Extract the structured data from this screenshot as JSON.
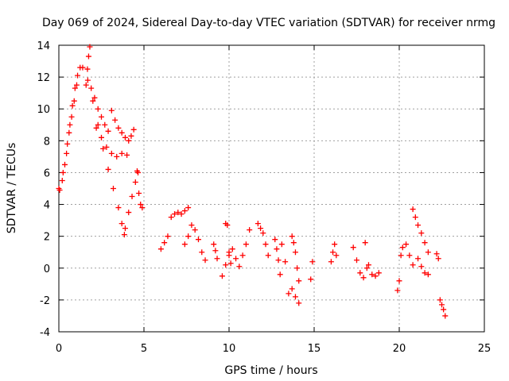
{
  "chart_data": {
    "type": "scatter",
    "title": "Day 069 of 2024, Sidereal Day-to-day VTEC variation (SDTVAR) for receiver nrmg",
    "xlabel": "GPS time / hours",
    "ylabel": "SDTVAR / TECUs",
    "xlim": [
      0,
      25
    ],
    "ylim": [
      -4,
      14
    ],
    "xticks": [
      0,
      5,
      10,
      15,
      20,
      25
    ],
    "yticks": [
      -4,
      -2,
      0,
      2,
      4,
      6,
      8,
      10,
      12,
      14
    ],
    "grid": true,
    "marker": "+",
    "color": "#ff0000",
    "series": [
      {
        "name": "SDTVAR",
        "segments": [
          {
            "x": [
              0.0,
              0.2,
              0.35,
              0.5,
              0.65,
              0.8,
              0.95,
              1.1,
              1.25,
              1.4
            ],
            "y": [
              5.0,
              5.5,
              6.5,
              7.8,
              9.0,
              10.2,
              11.3,
              12.1,
              12.6,
              12.6
            ]
          },
          {
            "x": [
              0.05,
              0.25,
              0.45,
              0.6,
              0.75,
              0.9,
              1.05
            ],
            "y": [
              4.9,
              6.0,
              7.2,
              8.5,
              9.5,
              10.5,
              11.5
            ]
          },
          {
            "x": [
              1.6,
              1.68,
              1.75,
              1.82
            ],
            "y": [
              11.5,
              12.5,
              13.3,
              13.9
            ]
          },
          {
            "x": [
              1.7,
              1.9,
              2.1,
              2.3,
              2.5,
              2.7,
              2.9
            ],
            "y": [
              11.8,
              11.3,
              10.7,
              10.0,
              9.5,
              9.0,
              8.6
            ]
          },
          {
            "x": [
              2.0,
              2.3,
              2.6,
              2.9,
              3.2,
              3.5,
              3.7,
              3.85
            ],
            "y": [
              10.5,
              9.0,
              7.5,
              6.2,
              5.0,
              3.8,
              2.8,
              2.1
            ]
          },
          {
            "x": [
              2.2,
              2.5,
              2.8,
              3.1,
              3.4,
              3.7,
              4.0
            ],
            "y": [
              8.8,
              8.2,
              7.6,
              7.2,
              7.0,
              7.2,
              7.1
            ]
          },
          {
            "x": [
              3.1,
              3.3,
              3.5,
              3.7,
              3.9,
              4.1,
              4.25,
              4.4
            ],
            "y": [
              9.9,
              9.3,
              8.8,
              8.5,
              8.2,
              8.0,
              8.3,
              8.7
            ]
          },
          {
            "x": [
              3.9,
              4.1,
              4.3,
              4.5,
              4.65
            ],
            "y": [
              2.5,
              3.5,
              4.5,
              5.4,
              6.0
            ]
          },
          {
            "x": [
              4.6,
              4.7,
              4.8,
              4.9
            ],
            "y": [
              6.1,
              4.7,
              4.0,
              3.8
            ]
          },
          {
            "x": [
              6.0,
              6.2,
              6.4,
              6.6,
              6.8,
              7.0,
              7.2,
              7.4,
              7.6
            ],
            "y": [
              1.2,
              1.6,
              2.0,
              3.2,
              3.4,
              3.5,
              3.4,
              3.6,
              3.8
            ]
          },
          {
            "x": [
              7.4,
              7.6,
              7.8,
              8.0,
              8.2,
              8.4,
              8.6
            ],
            "y": [
              1.5,
              2.0,
              2.7,
              2.4,
              1.8,
              1.0,
              0.5
            ]
          },
          {
            "x": [
              9.1,
              9.2,
              9.3
            ],
            "y": [
              1.5,
              1.1,
              0.6
            ]
          },
          {
            "x": [
              9.8,
              9.9,
              10.0,
              10.1
            ],
            "y": [
              2.8,
              2.7,
              1.0,
              0.3
            ]
          },
          {
            "x": [
              9.6,
              9.8,
              10.0,
              10.2,
              10.4,
              10.6,
              10.8,
              11.0,
              11.2
            ],
            "y": [
              -0.5,
              0.2,
              0.8,
              1.2,
              0.6,
              0.1,
              0.8,
              1.5,
              2.4
            ]
          },
          {
            "x": [
              11.7,
              11.85,
              12.0,
              12.15,
              12.3
            ],
            "y": [
              2.8,
              2.5,
              2.2,
              1.5,
              0.8
            ]
          },
          {
            "x": [
              12.7,
              12.8,
              12.9,
              13.0
            ],
            "y": [
              1.8,
              1.2,
              0.5,
              -0.4
            ]
          },
          {
            "x": [
              13.1,
              13.3,
              13.5
            ],
            "y": [
              1.5,
              0.4,
              -1.6
            ]
          },
          {
            "x": [
              13.7,
              13.8,
              13.9,
              14.0,
              14.1
            ],
            "y": [
              2.0,
              1.6,
              1.0,
              0.0,
              -0.8
            ]
          },
          {
            "x": [
              13.7,
              13.9,
              14.1
            ],
            "y": [
              -1.3,
              -1.8,
              -2.2
            ]
          },
          {
            "x": [
              14.8,
              14.9
            ],
            "y": [
              -0.7,
              0.4
            ]
          },
          {
            "x": [
              16.0,
              16.1,
              16.2,
              16.3
            ],
            "y": [
              0.4,
              1.0,
              1.5,
              0.8
            ]
          },
          {
            "x": [
              17.3,
              17.5,
              17.7,
              17.9,
              18.1
            ],
            "y": [
              1.3,
              0.5,
              -0.3,
              -0.6,
              0.0
            ]
          },
          {
            "x": [
              18.0,
              18.2,
              18.4,
              18.6,
              18.8
            ],
            "y": [
              1.6,
              0.2,
              -0.4,
              -0.5,
              -0.3
            ]
          },
          {
            "x": [
              19.9,
              20.0,
              20.1,
              20.2
            ],
            "y": [
              -1.4,
              -0.8,
              0.8,
              1.3
            ]
          },
          {
            "x": [
              20.4,
              20.6,
              20.8
            ],
            "y": [
              1.5,
              0.8,
              0.2
            ]
          },
          {
            "x": [
              20.8,
              20.95,
              21.1,
              21.3,
              21.5,
              21.7
            ],
            "y": [
              3.7,
              3.2,
              2.7,
              2.2,
              1.6,
              1.0
            ]
          },
          {
            "x": [
              21.1,
              21.3,
              21.5,
              21.7
            ],
            "y": [
              0.6,
              0.1,
              -0.3,
              -0.4
            ]
          },
          {
            "x": [
              22.2,
              22.3,
              22.4
            ],
            "y": [
              0.9,
              0.6,
              -2.0
            ]
          },
          {
            "x": [
              22.5,
              22.6,
              22.7
            ],
            "y": [
              -2.3,
              -2.6,
              -3.0
            ]
          }
        ]
      }
    ]
  }
}
